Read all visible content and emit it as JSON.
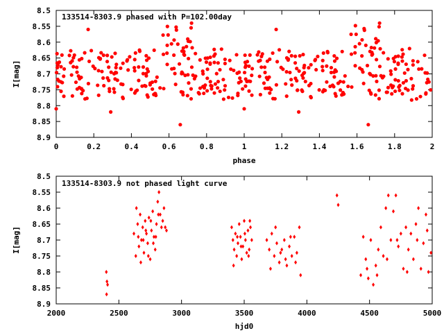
{
  "chart_data": [
    {
      "type": "scatter",
      "title": "133514-8303.9 phased with P=102.00day",
      "xlabel": "phase",
      "ylabel": "I[mag]",
      "xlim": [
        0,
        2
      ],
      "ylim": [
        8.5,
        8.9
      ],
      "y_inverted": true,
      "grid": false,
      "legend": "none",
      "marker_color": "#ff0000",
      "xticks": [
        "0",
        "0.2",
        "0.4",
        "0.6",
        "0.8",
        "1",
        "1.2",
        "1.4",
        "1.6",
        "1.8",
        "2"
      ],
      "yticks": [
        "8.5",
        "8.55",
        "8.6",
        "8.65",
        "8.7",
        "8.75",
        "8.8",
        "8.85",
        "8.9"
      ],
      "marker": "filled-circle"
    },
    {
      "type": "scatter",
      "title": "133514-8303.9 not phased light curve",
      "xlabel": "hjd0",
      "ylabel": "I[mag]",
      "xlim": [
        2000,
        5000
      ],
      "ylim": [
        8.5,
        8.9
      ],
      "y_inverted": true,
      "grid": false,
      "legend": "none",
      "marker_color": "#ff0000",
      "xticks": [
        "2000",
        "2500",
        "3000",
        "3500",
        "4000",
        "4500",
        "5000"
      ],
      "yticks": [
        "8.5",
        "8.55",
        "8.6",
        "8.65",
        "8.7",
        "8.75",
        "8.8",
        "8.85",
        "8.9"
      ],
      "marker": "filled-diamond",
      "points": [
        [
          2400,
          8.8
        ],
        [
          2405,
          8.83
        ],
        [
          2410,
          8.84
        ],
        [
          2402,
          8.87
        ],
        [
          2620,
          8.68
        ],
        [
          2640,
          8.6
        ],
        [
          2650,
          8.65
        ],
        [
          2660,
          8.72
        ],
        [
          2670,
          8.62
        ],
        [
          2680,
          8.7
        ],
        [
          2690,
          8.66
        ],
        [
          2700,
          8.74
        ],
        [
          2710,
          8.64
        ],
        [
          2720,
          8.68
        ],
        [
          2730,
          8.71
        ],
        [
          2740,
          8.63
        ],
        [
          2750,
          8.76
        ],
        [
          2760,
          8.67
        ],
        [
          2770,
          8.61
        ],
        [
          2780,
          8.69
        ],
        [
          2790,
          8.73
        ],
        [
          2800,
          8.65
        ],
        [
          2810,
          8.58
        ],
        [
          2820,
          8.55
        ],
        [
          2830,
          8.62
        ],
        [
          2840,
          8.66
        ],
        [
          2850,
          8.64
        ],
        [
          2860,
          8.6
        ],
        [
          2870,
          8.66
        ],
        [
          2880,
          8.67
        ],
        [
          2635,
          8.75
        ],
        [
          2655,
          8.69
        ],
        [
          2675,
          8.77
        ],
        [
          2695,
          8.7
        ],
        [
          2715,
          8.67
        ],
        [
          2735,
          8.75
        ],
        [
          2755,
          8.64
        ],
        [
          2775,
          8.71
        ],
        [
          2795,
          8.69
        ],
        [
          2815,
          8.62
        ],
        [
          3400,
          8.66
        ],
        [
          3410,
          8.7
        ],
        [
          3420,
          8.73
        ],
        [
          3430,
          8.68
        ],
        [
          3440,
          8.75
        ],
        [
          3450,
          8.71
        ],
        [
          3460,
          8.65
        ],
        [
          3470,
          8.69
        ],
        [
          3480,
          8.76
        ],
        [
          3490,
          8.72
        ],
        [
          3500,
          8.64
        ],
        [
          3510,
          8.7
        ],
        [
          3520,
          8.74
        ],
        [
          3530,
          8.67
        ],
        [
          3540,
          8.73
        ],
        [
          3550,
          8.66
        ],
        [
          3560,
          8.7
        ],
        [
          3415,
          8.78
        ],
        [
          3445,
          8.69
        ],
        [
          3475,
          8.72
        ],
        [
          3505,
          8.68
        ],
        [
          3535,
          8.75
        ],
        [
          3545,
          8.64
        ],
        [
          3680,
          8.7
        ],
        [
          3700,
          8.73
        ],
        [
          3720,
          8.68
        ],
        [
          3740,
          8.75
        ],
        [
          3760,
          8.71
        ],
        [
          3780,
          8.77
        ],
        [
          3800,
          8.73
        ],
        [
          3820,
          8.7
        ],
        [
          3840,
          8.78
        ],
        [
          3860,
          8.72
        ],
        [
          3880,
          8.75
        ],
        [
          3900,
          8.69
        ],
        [
          3920,
          8.74
        ],
        [
          3940,
          8.66
        ],
        [
          3950,
          8.81
        ],
        [
          3710,
          8.79
        ],
        [
          3750,
          8.66
        ],
        [
          3790,
          8.74
        ],
        [
          3830,
          8.76
        ],
        [
          3870,
          8.69
        ],
        [
          3910,
          8.77
        ],
        [
          4240,
          8.56
        ],
        [
          4250,
          8.59
        ],
        [
          4430,
          8.81
        ],
        [
          4450,
          8.69
        ],
        [
          4470,
          8.76
        ],
        [
          4490,
          8.82
        ],
        [
          4510,
          8.7
        ],
        [
          4530,
          8.84
        ],
        [
          4550,
          8.78
        ],
        [
          4570,
          8.73
        ],
        [
          4590,
          8.66
        ],
        [
          4610,
          8.75
        ],
        [
          4630,
          8.6
        ],
        [
          4650,
          8.56
        ],
        [
          4670,
          8.7
        ],
        [
          4690,
          8.61
        ],
        [
          4710,
          8.56
        ],
        [
          4730,
          8.72
        ],
        [
          4750,
          8.68
        ],
        [
          4770,
          8.79
        ],
        [
          4790,
          8.66
        ],
        [
          4810,
          8.73
        ],
        [
          4830,
          8.68
        ],
        [
          4850,
          8.76
        ],
        [
          4870,
          8.65
        ],
        [
          4890,
          8.6
        ],
        [
          4910,
          8.79
        ],
        [
          4930,
          8.71
        ],
        [
          4950,
          8.62
        ],
        [
          4970,
          8.8
        ],
        [
          4990,
          8.74
        ],
        [
          4480,
          8.79
        ],
        [
          4560,
          8.81
        ],
        [
          4640,
          8.76
        ],
        [
          4720,
          8.7
        ],
        [
          4800,
          8.8
        ],
        [
          4880,
          8.7
        ],
        [
          4960,
          8.67
        ]
      ]
    }
  ]
}
